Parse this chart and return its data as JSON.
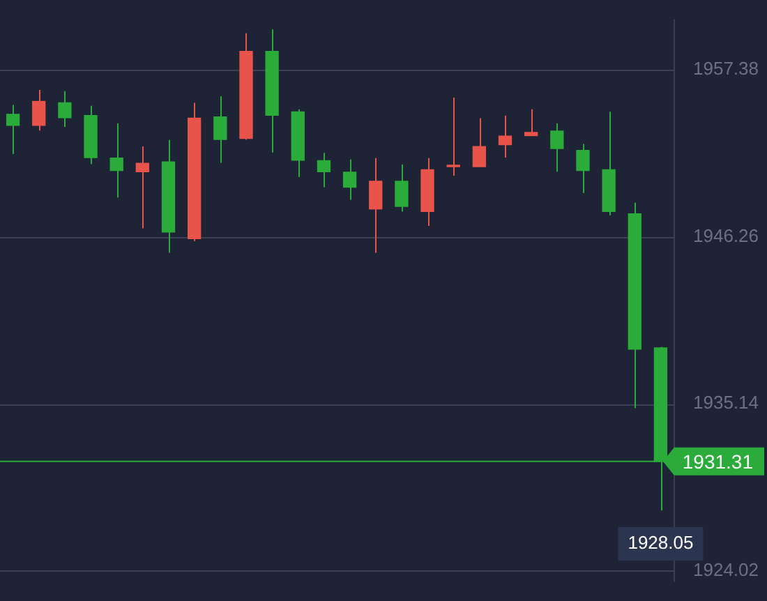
{
  "chart_data": {
    "type": "candlestick",
    "categories": [
      null,
      null,
      null,
      null,
      null,
      null,
      null,
      null,
      null,
      null,
      null,
      null,
      null,
      null,
      null,
      null,
      null,
      null,
      null,
      null,
      null,
      null,
      null,
      null,
      null,
      null
    ],
    "ohlc": [
      [
        1954.41,
        1955.04,
        1951.76,
        1953.67
      ],
      [
        1953.67,
        1956.04,
        1953.33,
        1955.27
      ],
      [
        1955.18,
        1955.95,
        1953.58,
        1954.18
      ],
      [
        1954.33,
        1954.98,
        1951.1,
        1951.53
      ],
      [
        1951.5,
        1953.81,
        1948.88,
        1950.67
      ],
      [
        1950.59,
        1952.27,
        1946.82,
        1951.16
      ],
      [
        1951.25,
        1952.7,
        1945.2,
        1946.57
      ],
      [
        1946.14,
        1955.18,
        1945.97,
        1954.16
      ],
      [
        1954.24,
        1955.61,
        1951.19,
        1952.73
      ],
      [
        1952.81,
        1959.8,
        1952.73,
        1958.6
      ],
      [
        1958.6,
        1960.06,
        1951.87,
        1954.35
      ],
      [
        1954.58,
        1954.75,
        1950.25,
        1951.36
      ],
      [
        1951.33,
        1951.85,
        1949.56,
        1950.59
      ],
      [
        1950.56,
        1951.41,
        1948.71,
        1949.56
      ],
      [
        1948.11,
        1951.5,
        1945.2,
        1949.96
      ],
      [
        1949.96,
        1951.07,
        1947.94,
        1948.28
      ],
      [
        1947.94,
        1951.5,
        1946.99,
        1950.73
      ],
      [
        1950.93,
        1955.52,
        1950.33,
        1951.0
      ],
      [
        1950.93,
        1954.16,
        1950.93,
        1952.27
      ],
      [
        1952.39,
        1954.33,
        1951.53,
        1952.96
      ],
      [
        1952.99,
        1954.75,
        1952.99,
        1953.21
      ],
      [
        1953.3,
        1953.81,
        1950.59,
        1952.13
      ],
      [
        1952.01,
        1952.44,
        1949.17,
        1950.67
      ],
      [
        1950.73,
        1954.58,
        1947.68,
        1947.94
      ],
      [
        1947.79,
        1948.53,
        1934.85,
        1938.78
      ],
      [
        1938.87,
        1938.93,
        1928.05,
        1931.31
      ]
    ],
    "colors": [
      "#2bab3a",
      "#e8534a",
      "#2bab3a",
      "#2bab3a",
      "#2bab3a",
      "#e8534a",
      "#2bab3a",
      "#e8534a",
      "#2bab3a",
      "#e8534a",
      "#2bab3a",
      "#2bab3a",
      "#2bab3a",
      "#2bab3a",
      "#e8534a",
      "#2bab3a",
      "#e8534a",
      "#e8534a",
      "#e8534a",
      "#e8534a",
      "#e8534a",
      "#2bab3a",
      "#2bab3a",
      "#2bab3a",
      "#2bab3a",
      "#2bab3a"
    ],
    "ylim": [
      1923.3,
      1960.74
    ],
    "yticks": [
      1957.38,
      1946.26,
      1935.14,
      1924.02
    ],
    "grid": "y",
    "ref_lines": [
      {
        "axis": "y",
        "value": 1931.31,
        "label": "1931.31",
        "color": "#2bab3a"
      }
    ],
    "annotations": [
      "1928.05"
    ]
  }
}
